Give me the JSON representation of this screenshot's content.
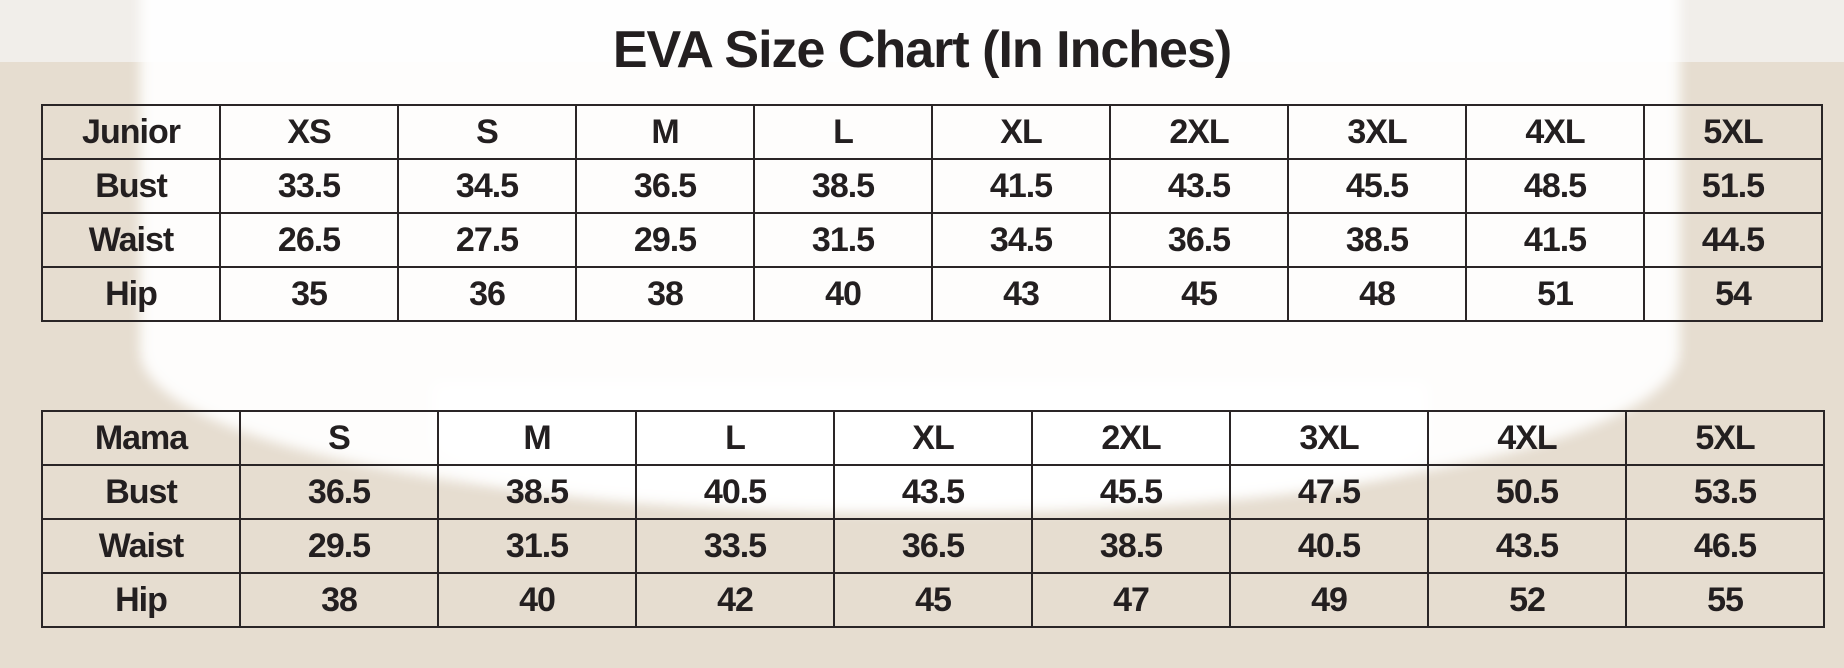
{
  "title": "EVA Size Chart (In Inches)",
  "junior": {
    "header": [
      "Junior",
      "XS",
      "S",
      "M",
      "L",
      "XL",
      "2XL",
      "3XL",
      "4XL",
      "5XL"
    ],
    "rows": [
      [
        "Bust",
        "33.5",
        "34.5",
        "36.5",
        "38.5",
        "41.5",
        "43.5",
        "45.5",
        "48.5",
        "51.5"
      ],
      [
        "Waist",
        "26.5",
        "27.5",
        "29.5",
        "31.5",
        "34.5",
        "36.5",
        "38.5",
        "41.5",
        "44.5"
      ],
      [
        "Hip",
        "35",
        "36",
        "38",
        "40",
        "43",
        "45",
        "48",
        "51",
        "54"
      ]
    ]
  },
  "mama": {
    "header": [
      "Mama",
      "S",
      "M",
      "L",
      "XL",
      "2XL",
      "3XL",
      "4XL",
      "5XL"
    ],
    "rows": [
      [
        "Bust",
        "36.5",
        "38.5",
        "40.5",
        "43.5",
        "45.5",
        "47.5",
        "50.5",
        "53.5"
      ],
      [
        "Waist",
        "29.5",
        "31.5",
        "33.5",
        "36.5",
        "38.5",
        "40.5",
        "43.5",
        "46.5"
      ],
      [
        "Hip",
        "38",
        "40",
        "42",
        "45",
        "47",
        "49",
        "52",
        "55"
      ]
    ]
  }
}
